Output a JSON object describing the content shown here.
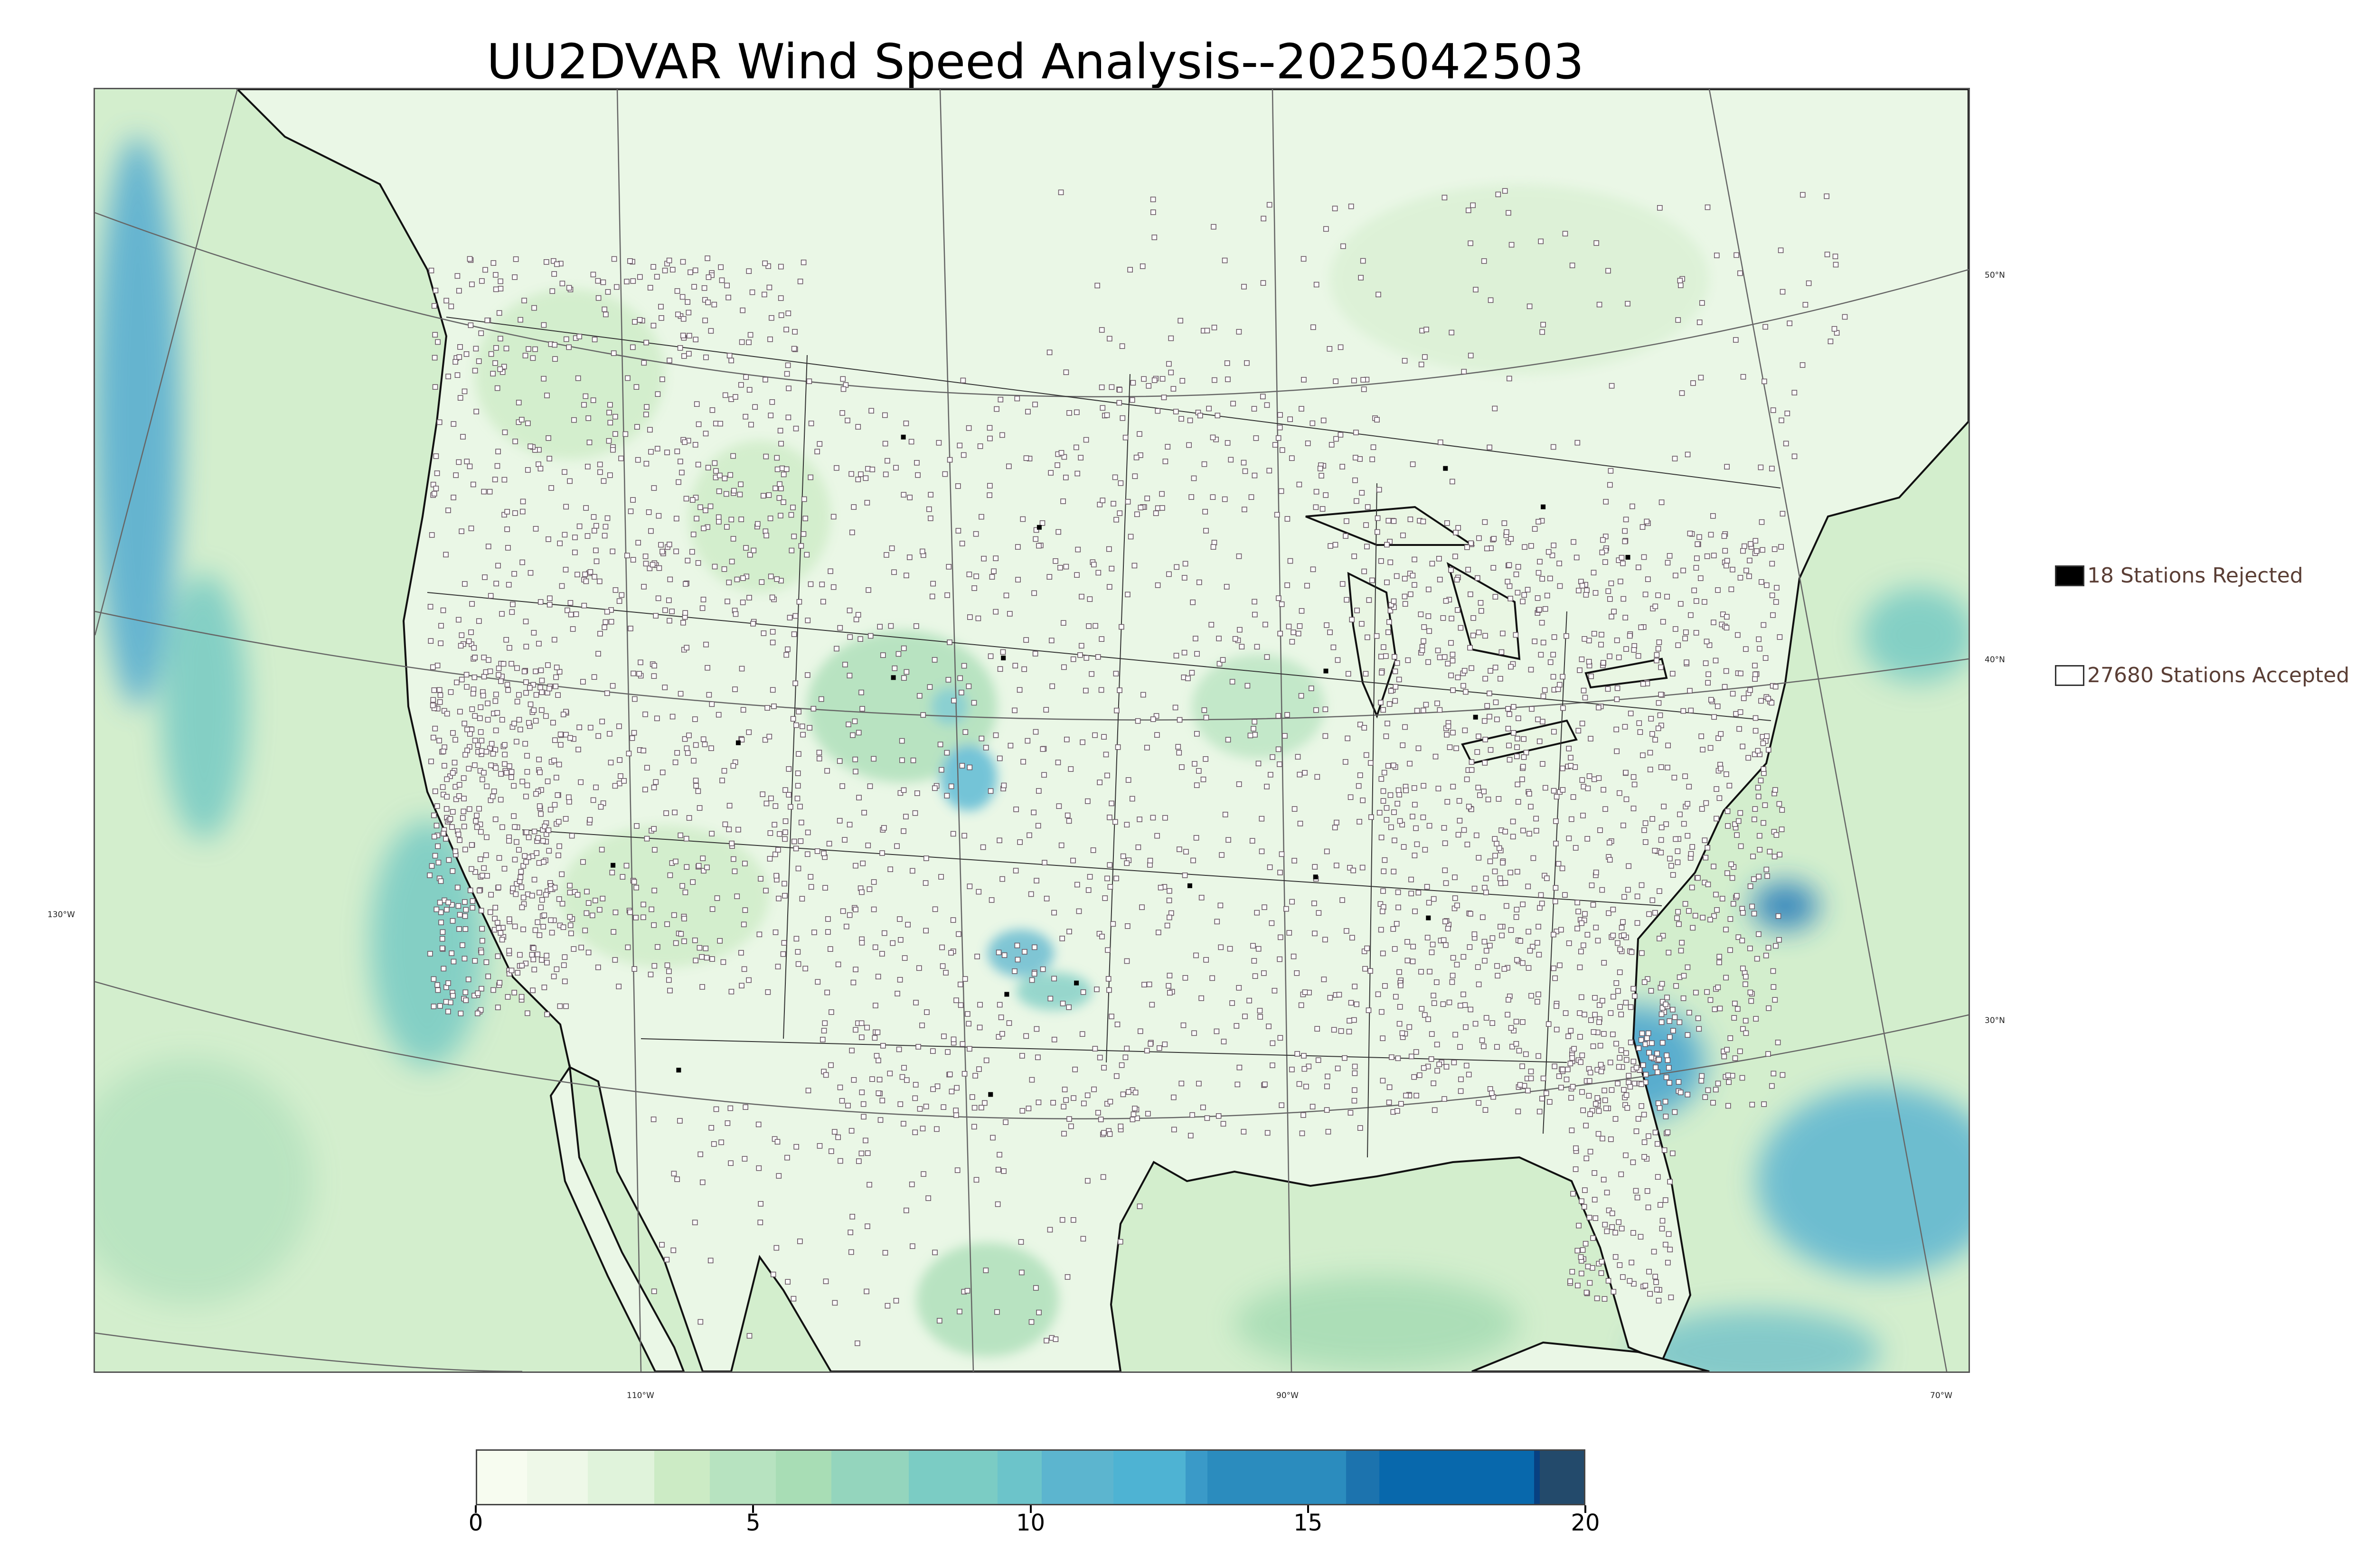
{
  "title": "UU2DVAR Wind Speed Analysis--2025042503",
  "legend": {
    "rejected": {
      "label": "18 Stations Rejected",
      "color": "#000000"
    },
    "accepted": {
      "label": "27680 Stations Accepted",
      "color": "#ffffff"
    }
  },
  "lat_labels": [
    "50°N",
    "40°N",
    "30°N"
  ],
  "lon_labels": [
    "130°W",
    "110°W",
    "90°W",
    "70°W"
  ],
  "colorbar": {
    "ticks": [
      "0",
      "5",
      "10",
      "15",
      "20"
    ],
    "min": 0,
    "max": 20,
    "colors": [
      "#f7fcf0",
      "#eef8e8",
      "#e0f3db",
      "#ccebc5",
      "#b7e3c0",
      "#a8ddb5",
      "#94d5bd",
      "#7bccc4",
      "#6cc4ca",
      "#5cb5cf",
      "#4eb3d3",
      "#3a9ac8",
      "#2b8cbe",
      "#1c73ae",
      "#0868ac",
      "#084081",
      "#234a6b"
    ],
    "boundaries": [
      0,
      0.9,
      2,
      3.2,
      4.2,
      5.4,
      6.4,
      7.8,
      9.4,
      10.2,
      11.5,
      12.8,
      13.2,
      15.7,
      16.3,
      19.1,
      19.2,
      20
    ]
  },
  "map_colors": {
    "land": "#e9f6e3",
    "ocean": "#d3eecd",
    "strong_wind": "#6cbfc9",
    "very_strong": "#3b95c4",
    "coast": "#111111",
    "grid": "#666666"
  }
}
